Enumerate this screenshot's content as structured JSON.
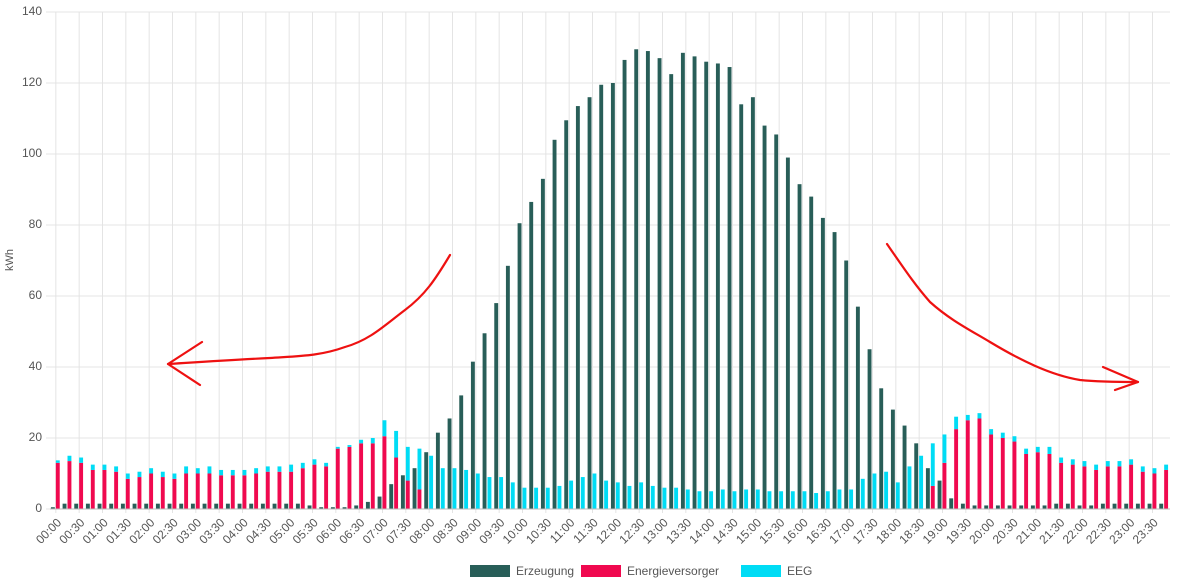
{
  "chart_data": {
    "type": "bar",
    "y_label": "kWh",
    "categories": [
      "00:00",
      null,
      "00:30",
      null,
      "01:00",
      null,
      "01:30",
      null,
      "02:00",
      null,
      "02:30",
      null,
      "03:00",
      null,
      "03:30",
      null,
      "04:00",
      null,
      "04:30",
      null,
      "05:00",
      null,
      "05:30",
      null,
      "06:00",
      null,
      "06:30",
      null,
      "07:00",
      null,
      "07:30",
      null,
      "08:00",
      null,
      "08:30",
      null,
      "09:00",
      null,
      "09:30",
      null,
      "10:00",
      null,
      "10:30",
      null,
      "11:00",
      null,
      "11:30",
      null,
      "12:00",
      null,
      "12:30",
      null,
      "13:00",
      null,
      "13:30",
      null,
      "14:00",
      null,
      "14:30",
      null,
      "15:00",
      null,
      "15:30",
      null,
      "16:00",
      null,
      "16:30",
      null,
      "17:00",
      null,
      "17:30",
      null,
      "18:00",
      null,
      "18:30",
      null,
      "19:00",
      null,
      "19:30",
      null,
      "20:00",
      null,
      "20:30",
      null,
      "21:00",
      null,
      "21:30",
      null,
      "22:00",
      null,
      "22:30",
      null,
      "23:00",
      null,
      "23:30",
      null
    ],
    "series": [
      {
        "name": "Erzeugung",
        "color": "#285e58",
        "stack": 0,
        "values": [
          0.5,
          1.5,
          1.5,
          1.5,
          1.5,
          1.5,
          1.5,
          1.5,
          1.5,
          1.5,
          1.5,
          1.5,
          1.5,
          1.5,
          1.5,
          1.5,
          1.5,
          1.5,
          1.5,
          1.5,
          1.5,
          1.5,
          1,
          0.5,
          0.5,
          0.5,
          1,
          2,
          3.5,
          7,
          9.5,
          11.5,
          16,
          21.5,
          25.5,
          32,
          41.5,
          49.5,
          58,
          68.5,
          80.5,
          86.5,
          93,
          104,
          109.5,
          113.5,
          116,
          119.5,
          120,
          126.5,
          129.5,
          129,
          127,
          122.5,
          128.5,
          127.5,
          126,
          125.5,
          124.5,
          114,
          116,
          108,
          105.5,
          99,
          91.5,
          88,
          82,
          78,
          70,
          57,
          45,
          34,
          28,
          23.5,
          18.5,
          11.5,
          8,
          3,
          1.5,
          1,
          1,
          1,
          1,
          1,
          1,
          1,
          1.5,
          1.5,
          1,
          1,
          1.5,
          1.5,
          1.5,
          1.5,
          1.5,
          1.5
        ]
      },
      {
        "name": "Energieversorger",
        "color": "#f0094f",
        "stack": 1,
        "values": [
          13,
          13.5,
          13,
          11,
          11,
          10.5,
          8.5,
          9,
          10,
          9,
          8.5,
          10,
          10,
          10,
          9.5,
          9.5,
          9.5,
          10,
          10.5,
          10.5,
          10.5,
          11.5,
          12.5,
          12,
          17,
          17.5,
          18.5,
          18.5,
          20.5,
          14.5,
          8,
          5.5,
          0,
          0,
          0,
          0,
          0,
          0,
          0,
          0,
          0,
          0,
          0,
          0,
          0,
          0,
          0,
          0,
          0,
          0,
          0,
          0,
          0,
          0,
          0,
          0,
          0,
          0,
          0,
          0,
          0,
          0,
          0,
          0,
          0,
          0,
          0,
          0,
          0,
          0,
          0,
          0,
          0,
          0,
          0,
          6.5,
          13,
          22.5,
          25,
          25.5,
          21,
          20,
          19,
          15.5,
          16,
          15.5,
          13,
          12.5,
          12,
          11,
          12,
          12,
          12.5,
          10.5,
          10,
          11
        ]
      },
      {
        "name": "EEG",
        "color": "#00dcf5",
        "stack": 1,
        "values": [
          0.7,
          1.5,
          1.5,
          1.5,
          1.5,
          1.5,
          1.5,
          1.5,
          1.5,
          1.5,
          1.5,
          2,
          1.5,
          2,
          1.5,
          1.5,
          1.5,
          1.5,
          1.5,
          1.5,
          2,
          1.5,
          1.5,
          1,
          0.5,
          0.5,
          1,
          1.5,
          4.5,
          7.5,
          9.5,
          11.5,
          15,
          11.5,
          11.5,
          11,
          10,
          9,
          9,
          7.5,
          6,
          6,
          6,
          6.5,
          8,
          9,
          10,
          8,
          7.5,
          6.5,
          7.5,
          6.5,
          6,
          6,
          5.5,
          5,
          5,
          5.5,
          5,
          5.5,
          5.5,
          5,
          5,
          5,
          5,
          4.5,
          5,
          5.5,
          5.5,
          8.5,
          10,
          10.5,
          7.5,
          12,
          15,
          12,
          8,
          3.5,
          1.5,
          1.5,
          1.5,
          1.5,
          1.5,
          1.5,
          1.5,
          2,
          1.5,
          1.5,
          1.5,
          1.5,
          1.5,
          1.5,
          1.5,
          1.5,
          1.5,
          1.5
        ]
      }
    ],
    "ylim": [
      0,
      140
    ],
    "yticks": [
      0,
      20,
      40,
      60,
      80,
      100,
      120,
      140
    ],
    "grid": true,
    "legend": "bottom"
  }
}
